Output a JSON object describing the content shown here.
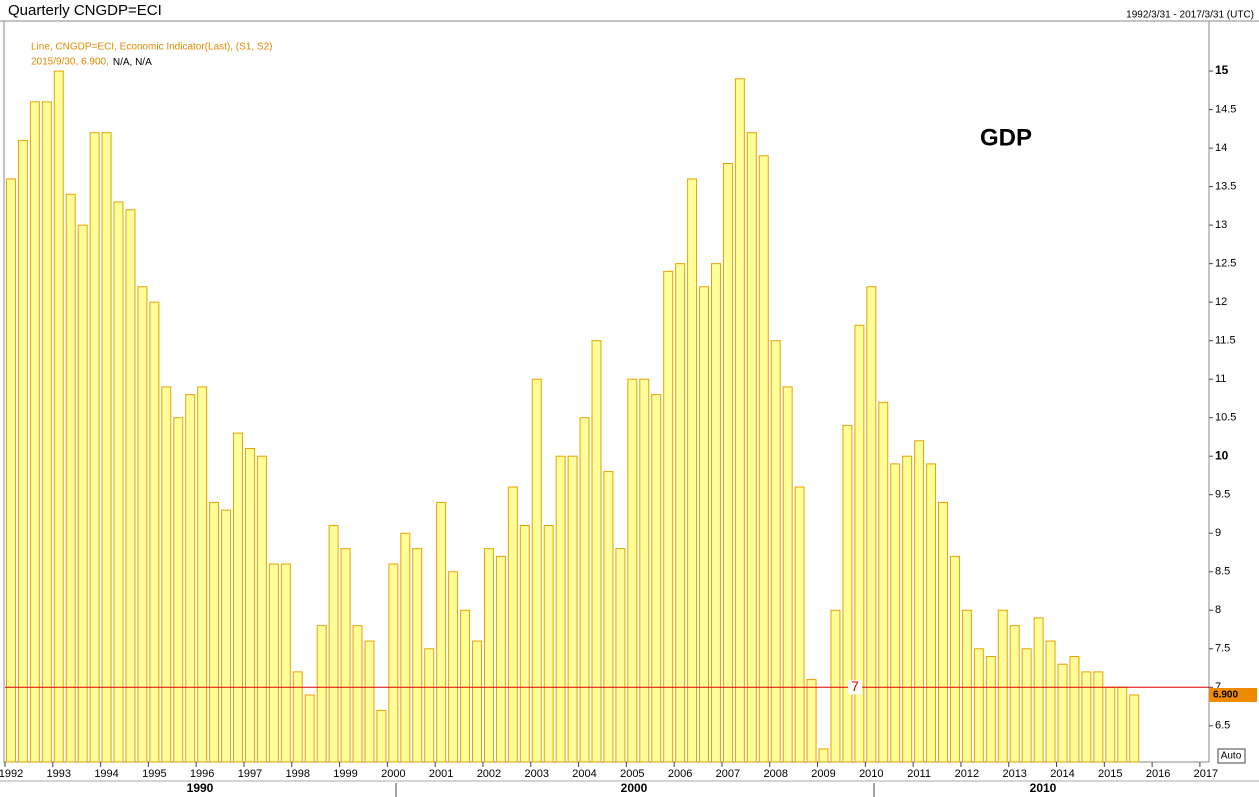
{
  "header": {
    "title": "Quarterly CNGDP=ECI",
    "range": "1992/3/31 - 2017/3/31 (UTC)",
    "button": "Auto"
  },
  "chart_data": {
    "type": "bar",
    "legend_line1": "Line, CNGDP=ECI, Economic Indicator(Last), (S1, S2)",
    "legend_line2": "2015/9/30, 6.900,",
    "legend_line2_rest": "N/A, N/A",
    "annotation": "GDP",
    "color": "#ffff99",
    "edge_color": "#e8a200",
    "categories": [
      null,
      null,
      null,
      null,
      null,
      null,
      null,
      null,
      null,
      null,
      null,
      null,
      null,
      null,
      null,
      null,
      null,
      null,
      null,
      null,
      null,
      null,
      null,
      null,
      null,
      null,
      null,
      null,
      null,
      null,
      null,
      null,
      null,
      null,
      null,
      null,
      null,
      null,
      null,
      null,
      null,
      null,
      null,
      null,
      null,
      null,
      null,
      null,
      null,
      null,
      null,
      null,
      null,
      null,
      null,
      null,
      null,
      null,
      null,
      null,
      null,
      null,
      null,
      null,
      null,
      null,
      null,
      null,
      null,
      null,
      null,
      null,
      null,
      null,
      null,
      null,
      null,
      null,
      null,
      null,
      null,
      null,
      null,
      null,
      null,
      null,
      null,
      null,
      null,
      null,
      null,
      null,
      null,
      null,
      null
    ],
    "values": [
      13.6,
      14.1,
      14.6,
      14.6,
      15.0,
      13.4,
      13.0,
      14.2,
      14.2,
      13.3,
      13.2,
      12.2,
      12.0,
      10.9,
      10.5,
      10.8,
      10.9,
      9.4,
      9.3,
      10.3,
      10.1,
      10.0,
      8.6,
      8.6,
      7.2,
      6.9,
      7.8,
      9.1,
      8.8,
      7.8,
      7.6,
      6.7,
      8.6,
      9.0,
      8.8,
      7.5,
      9.4,
      8.5,
      8.0,
      7.6,
      8.8,
      8.7,
      9.6,
      9.1,
      11.0,
      9.1,
      10.0,
      10.0,
      10.5,
      11.5,
      9.8,
      8.8,
      11.0,
      11.0,
      10.8,
      12.4,
      12.5,
      13.6,
      12.2,
      12.5,
      13.8,
      14.9,
      14.2,
      13.9,
      11.5,
      10.9,
      9.6,
      7.1,
      6.2,
      8.0,
      10.4,
      11.7,
      12.2,
      10.7,
      9.9,
      10.0,
      10.2,
      9.9,
      9.4,
      8.7,
      8.0,
      7.5,
      7.4,
      8.0,
      7.8,
      7.5,
      7.9,
      7.6,
      7.3,
      7.4,
      7.2,
      7.2,
      7.0,
      7.0,
      6.9
    ],
    "last_value_label": "6.900",
    "hline": 7,
    "hline_color": "#e00000",
    "ylim": [
      6.03,
      15.65
    ],
    "yticks": [
      6.5,
      7,
      7.5,
      8,
      8.5,
      9,
      9.5,
      10,
      10.5,
      11,
      11.5,
      12,
      12.5,
      13,
      13.5,
      14,
      14.5,
      15
    ],
    "xlim": [
      1992,
      2017.19
    ],
    "xticks": [
      1992,
      1993,
      1994,
      1995,
      1996,
      1997,
      1998,
      1999,
      2000,
      2001,
      2002,
      2003,
      2004,
      2005,
      2006,
      2007,
      2008,
      2009,
      2010,
      2011,
      2012,
      2013,
      2014,
      2015,
      2016,
      2017
    ],
    "decade_labels": [
      "1990",
      "2000",
      "2010"
    ]
  }
}
